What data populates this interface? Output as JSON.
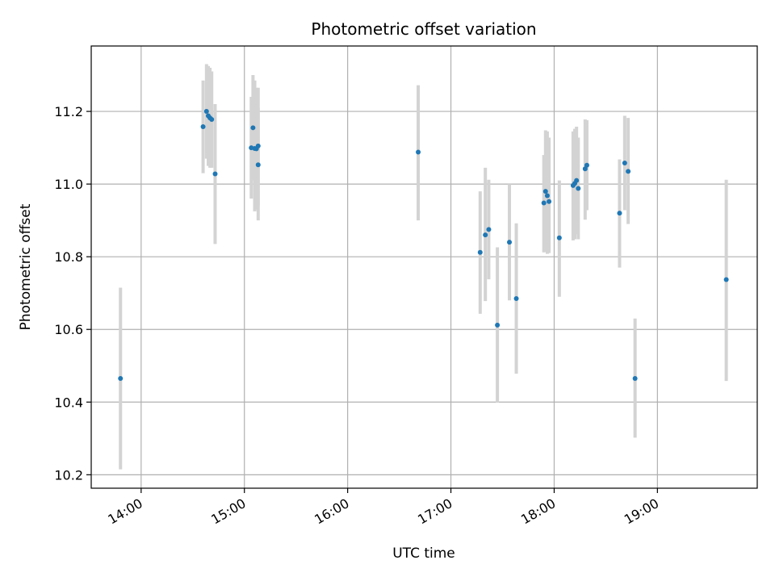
{
  "chart_data": {
    "type": "scatter",
    "title": "Photometric offset variation",
    "xlabel": "UTC time",
    "ylabel": "Photometric offset",
    "xlim": [
      "13:31",
      "19:58"
    ],
    "ylim": [
      10.163,
      11.38
    ],
    "x_ticks": [
      "14:00",
      "15:00",
      "16:00",
      "17:00",
      "18:00",
      "19:00"
    ],
    "y_ticks": [
      10.2,
      10.4,
      10.6,
      10.8,
      11.0,
      11.2
    ],
    "grid": true,
    "colors": {
      "points": "#1f77b4",
      "error_bars": "#d3d3d3",
      "grid": "#b0b0b0"
    },
    "points": [
      {
        "x": "13:48",
        "y": 10.465,
        "ylo": 10.215,
        "yhi": 10.715
      },
      {
        "x": "14:36",
        "y": 11.158,
        "ylo": 11.03,
        "yhi": 11.285
      },
      {
        "x": "14:38",
        "y": 11.2,
        "ylo": 11.07,
        "yhi": 11.33
      },
      {
        "x": "14:39",
        "y": 11.188,
        "ylo": 11.05,
        "yhi": 11.325
      },
      {
        "x": "14:40",
        "y": 11.182,
        "ylo": 11.045,
        "yhi": 11.32
      },
      {
        "x": "14:41",
        "y": 11.178,
        "ylo": 11.045,
        "yhi": 11.31
      },
      {
        "x": "14:43",
        "y": 11.028,
        "ylo": 10.835,
        "yhi": 11.22
      },
      {
        "x": "15:04",
        "y": 11.1,
        "ylo": 10.96,
        "yhi": 11.24
      },
      {
        "x": "15:05",
        "y": 11.155,
        "ylo": 11.01,
        "yhi": 11.3
      },
      {
        "x": "15:06",
        "y": 11.098,
        "ylo": 10.925,
        "yhi": 11.285
      },
      {
        "x": "15:07",
        "y": 11.097,
        "ylo": 10.93,
        "yhi": 11.265
      },
      {
        "x": "15:08",
        "y": 11.105,
        "ylo": 10.94,
        "yhi": 11.265
      },
      {
        "x": "15:08",
        "y": 11.053,
        "ylo": 10.9,
        "yhi": 11.21
      },
      {
        "x": "16:41",
        "y": 11.088,
        "ylo": 10.9,
        "yhi": 11.272
      },
      {
        "x": "17:17",
        "y": 10.812,
        "ylo": 10.643,
        "yhi": 10.98
      },
      {
        "x": "17:20",
        "y": 10.86,
        "ylo": 10.678,
        "yhi": 11.045
      },
      {
        "x": "17:22",
        "y": 10.875,
        "ylo": 10.738,
        "yhi": 11.012
      },
      {
        "x": "17:27",
        "y": 10.612,
        "ylo": 10.398,
        "yhi": 10.826
      },
      {
        "x": "17:34",
        "y": 10.84,
        "ylo": 10.68,
        "yhi": 11.0
      },
      {
        "x": "17:38",
        "y": 10.685,
        "ylo": 10.478,
        "yhi": 10.892
      },
      {
        "x": "17:54",
        "y": 10.948,
        "ylo": 10.812,
        "yhi": 11.08
      },
      {
        "x": "17:55",
        "y": 10.98,
        "ylo": 10.814,
        "yhi": 11.148
      },
      {
        "x": "17:56",
        "y": 10.968,
        "ylo": 10.808,
        "yhi": 11.145
      },
      {
        "x": "17:57",
        "y": 10.952,
        "ylo": 10.81,
        "yhi": 11.128
      },
      {
        "x": "18:03",
        "y": 10.852,
        "ylo": 10.69,
        "yhi": 11.01
      },
      {
        "x": "18:11",
        "y": 10.996,
        "ylo": 10.845,
        "yhi": 11.145
      },
      {
        "x": "18:12",
        "y": 11.002,
        "ylo": 10.848,
        "yhi": 11.152
      },
      {
        "x": "18:13",
        "y": 11.01,
        "ylo": 10.862,
        "yhi": 11.158
      },
      {
        "x": "18:14",
        "y": 10.988,
        "ylo": 10.848,
        "yhi": 11.128
      },
      {
        "x": "18:18",
        "y": 11.042,
        "ylo": 10.902,
        "yhi": 11.178
      },
      {
        "x": "18:19",
        "y": 11.052,
        "ylo": 10.928,
        "yhi": 11.176
      },
      {
        "x": "18:38",
        "y": 10.92,
        "ylo": 10.77,
        "yhi": 11.068
      },
      {
        "x": "18:41",
        "y": 11.058,
        "ylo": 10.928,
        "yhi": 11.188
      },
      {
        "x": "18:43",
        "y": 11.035,
        "ylo": 10.89,
        "yhi": 11.182
      },
      {
        "x": "18:47",
        "y": 10.465,
        "ylo": 10.302,
        "yhi": 10.63
      },
      {
        "x": "19:40",
        "y": 10.737,
        "ylo": 10.458,
        "yhi": 11.012
      }
    ]
  }
}
